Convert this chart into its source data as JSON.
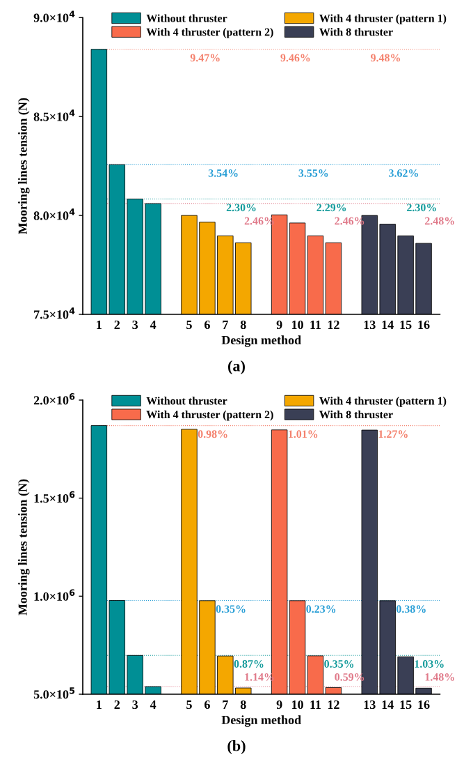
{
  "chart_data": [
    {
      "type": "bar",
      "xlabel": "Design method",
      "ylabel": "Mooring lines tension (N)",
      "categories": [
        "1",
        "2",
        "3",
        "4",
        null,
        "5",
        "6",
        "7",
        "8",
        null,
        "9",
        "10",
        "11",
        "12",
        null,
        "13",
        "14",
        "15",
        "16"
      ],
      "series": [
        {
          "name": "Without thruster",
          "color": "#008f95",
          "values": [
            88400,
            82570,
            80830,
            80600,
            null,
            null,
            null,
            null,
            null,
            null,
            null,
            null,
            null,
            null,
            null,
            null,
            null,
            null,
            null
          ]
        },
        {
          "name": "With 4 thruster (pattern 2)",
          "color": "#f86b4b",
          "values": [
            null,
            null,
            null,
            null,
            null,
            null,
            null,
            null,
            null,
            null,
            80030,
            79620,
            78970,
            78620,
            null,
            null,
            null,
            null,
            null
          ]
        },
        {
          "name": "With 4 thruster (pattern 1)",
          "color": "#f4a700",
          "values": [
            null,
            null,
            null,
            null,
            null,
            80000,
            79660,
            78970,
            78620,
            null,
            null,
            null,
            null,
            null,
            null,
            null,
            null,
            null,
            null
          ]
        },
        {
          "name": "With 8 thruster",
          "color": "#3a3f55",
          "values": [
            null,
            null,
            null,
            null,
            null,
            null,
            null,
            null,
            null,
            null,
            null,
            null,
            null,
            null,
            null,
            80000,
            79560,
            78970,
            78590
          ]
        }
      ],
      "ylim": [
        75000,
        90000
      ],
      "yticks": [
        {
          "value": 75000,
          "label": "7.5×10$^{4}$"
        },
        {
          "value": 80000,
          "label": "8.0×10$^{4}$"
        },
        {
          "value": 85000,
          "label": "8.5×10$^{4}$"
        },
        {
          "value": 90000,
          "label": "9.0×10$^{4}$"
        }
      ],
      "ref_lines": [
        {
          "axis": "y",
          "value": 88400,
          "color": "#f4826e",
          "line_style": "dotted"
        },
        {
          "axis": "y",
          "value": 82570,
          "color": "#2a9fd6",
          "line_style": "dotted"
        },
        {
          "axis": "y",
          "value": 80830,
          "color": "#169c9c",
          "line_style": "dotted"
        },
        {
          "axis": "y",
          "value": 80600,
          "color": "#e07a8a",
          "line_style": "dotted"
        }
      ],
      "annotations": [
        "9.47%",
        "3.54%",
        "2.30%",
        "2.46%",
        "9.46%",
        "3.55%",
        "2.29%",
        "2.46%",
        "9.48%",
        "3.62%",
        "2.30%",
        "2.48%",
        "(a)"
      ],
      "legend": "top",
      "grid": false
    },
    {
      "type": "bar",
      "xlabel": "Design method",
      "ylabel": "Mooring lines tension (N)",
      "categories": [
        "1",
        "2",
        "3",
        "4",
        null,
        "5",
        "6",
        "7",
        "8",
        null,
        "9",
        "10",
        "11",
        "12",
        null,
        "13",
        "14",
        "15",
        "16"
      ],
      "series": [
        {
          "name": "Without thruster",
          "color": "#008f95",
          "values": [
            1870000,
            978000,
            698000,
            539000,
            null,
            null,
            null,
            null,
            null,
            null,
            null,
            null,
            null,
            null,
            null,
            null,
            null,
            null,
            null
          ]
        },
        {
          "name": "With 4 thruster (pattern 2)",
          "color": "#f86b4b",
          "values": [
            null,
            null,
            null,
            null,
            null,
            null,
            null,
            null,
            null,
            null,
            1848000,
            977000,
            696000,
            534000,
            null,
            null,
            null,
            null,
            null
          ]
        },
        {
          "name": "With 4 thruster (pattern 1)",
          "color": "#f4a700",
          "values": [
            null,
            null,
            null,
            null,
            null,
            1851000,
            977000,
            695000,
            532000,
            null,
            null,
            null,
            null,
            null,
            null,
            null,
            null,
            null,
            null
          ]
        },
        {
          "name": "With 8 thruster",
          "color": "#3a3f55",
          "values": [
            null,
            null,
            null,
            null,
            null,
            null,
            null,
            null,
            null,
            null,
            null,
            null,
            null,
            null,
            null,
            1847000,
            977000,
            691000,
            531000
          ]
        }
      ],
      "ylim": [
        500000,
        2000000
      ],
      "yticks": [
        {
          "value": 500000,
          "label": "5.0×10$^{5}$"
        },
        {
          "value": 1000000,
          "label": "1.0×10$^{6}$"
        },
        {
          "value": 1500000,
          "label": "1.5×10$^{6}$"
        },
        {
          "value": 2000000,
          "label": "2.0×10$^{6}$"
        }
      ],
      "ref_lines": [
        {
          "axis": "y",
          "value": 1870000,
          "color": "#f4826e",
          "line_style": "dotted"
        },
        {
          "axis": "y",
          "value": 978000,
          "color": "#2a9fd6",
          "line_style": "dotted"
        },
        {
          "axis": "y",
          "value": 698000,
          "color": "#169c9c",
          "line_style": "dotted"
        },
        {
          "axis": "y",
          "value": 539000,
          "color": "#e07a8a",
          "line_style": "dotted"
        }
      ],
      "annotations": [
        "0.98%",
        "0.35%",
        "0.87%",
        "1.14%",
        "1.01%",
        "0.23%",
        "0.35%",
        "0.59%",
        "1.27%",
        "0.38%",
        "1.03%",
        "1.48%",
        "(b)"
      ],
      "legend": "top",
      "grid": false
    }
  ]
}
